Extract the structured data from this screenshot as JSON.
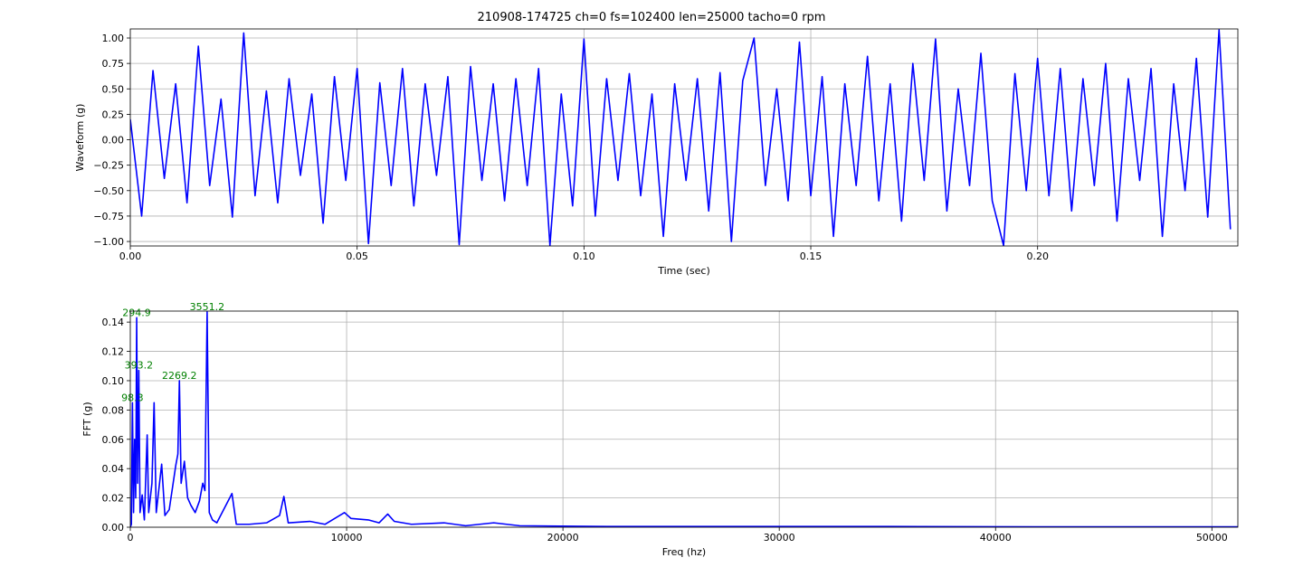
{
  "chart_data": [
    {
      "type": "line",
      "title": "210908-174725 ch=0 fs=102400 len=25000 tacho=0 rpm",
      "xlabel": "Time (sec)",
      "ylabel": "Waveform (g)",
      "x": [
        0,
        0.0025,
        0.005,
        0.0075,
        0.01,
        0.0125,
        0.015,
        0.0175,
        0.02,
        0.0225,
        0.025,
        0.0275,
        0.03,
        0.0325,
        0.035,
        0.0375,
        0.04,
        0.0425,
        0.045,
        0.0475,
        0.05,
        0.0525,
        0.055,
        0.0575,
        0.06,
        0.0625,
        0.065,
        0.0675,
        0.07,
        0.0725,
        0.075,
        0.0775,
        0.08,
        0.0825,
        0.085,
        0.0875,
        0.09,
        0.0925,
        0.095,
        0.0975,
        0.1,
        0.1025,
        0.105,
        0.1075,
        0.11,
        0.1125,
        0.115,
        0.1175,
        0.12,
        0.1225,
        0.125,
        0.1275,
        0.13,
        0.1325,
        0.135,
        0.1375,
        0.14,
        0.1425,
        0.145,
        0.1475,
        0.15,
        0.1525,
        0.155,
        0.1575,
        0.16,
        0.1625,
        0.165,
        0.1675,
        0.17,
        0.1725,
        0.175,
        0.1775,
        0.18,
        0.1825,
        0.185,
        0.1875,
        0.19,
        0.1925,
        0.195,
        0.1975,
        0.2,
        0.2025,
        0.205,
        0.2075,
        0.21,
        0.2125,
        0.215,
        0.2175,
        0.22,
        0.2225,
        0.225,
        0.2275,
        0.23,
        0.2325,
        0.235,
        0.2375,
        0.24,
        0.2425
      ],
      "series": [
        {
          "color": "#0000ff",
          "values": [
            0.2,
            -0.75,
            0.68,
            -0.38,
            0.55,
            -0.62,
            0.92,
            -0.45,
            0.4,
            -0.76,
            1.05,
            -0.55,
            0.48,
            -0.62,
            0.6,
            -0.35,
            0.45,
            -0.82,
            0.62,
            -0.4,
            0.7,
            -1.02,
            0.56,
            -0.45,
            0.7,
            -0.65,
            0.55,
            -0.35,
            0.62,
            -1.03,
            0.72,
            -0.4,
            0.55,
            -0.6,
            0.6,
            -0.45,
            0.7,
            -1.04,
            0.45,
            -0.65,
            0.99,
            -0.75,
            0.6,
            -0.4,
            0.65,
            -0.55,
            0.45,
            -0.95,
            0.55,
            -0.4,
            0.6,
            -0.7,
            0.66,
            -1.0,
            0.58,
            1.0,
            -0.45,
            0.5,
            -0.6,
            0.96,
            -0.55,
            0.62,
            -0.95,
            0.55,
            -0.45,
            0.82,
            -0.6,
            0.55,
            -0.8,
            0.75,
            -0.4,
            0.99,
            -0.7,
            0.5,
            -0.45,
            0.85,
            -0.6,
            -1.04,
            0.65,
            -0.5,
            0.8,
            -0.55,
            0.7,
            -0.7,
            0.6,
            -0.45,
            0.75,
            -0.8,
            0.6,
            -0.4,
            0.7,
            -0.95,
            0.55,
            -0.5,
            0.8,
            -0.76,
            1.08,
            -0.88
          ]
        }
      ],
      "xlim": [
        0,
        0.24414
      ],
      "ylim": [
        -1.044,
        1.089
      ],
      "xticks": [
        {
          "value": 0,
          "label": "0.00"
        },
        {
          "value": 0.05,
          "label": "0.05"
        },
        {
          "value": 0.1,
          "label": "0.10"
        },
        {
          "value": 0.15,
          "label": "0.15"
        },
        {
          "value": 0.2,
          "label": "0.20"
        }
      ],
      "yticks": [
        {
          "value": -1,
          "label": "−1.00"
        },
        {
          "value": -0.75,
          "label": "−0.75"
        },
        {
          "value": -0.5,
          "label": "−0.50"
        },
        {
          "value": -0.25,
          "label": "−0.25"
        },
        {
          "value": 0,
          "label": "0.00"
        },
        {
          "value": 0.25,
          "label": "0.25"
        },
        {
          "value": 0.5,
          "label": "0.50"
        },
        {
          "value": 0.75,
          "label": "0.75"
        },
        {
          "value": 1,
          "label": "1.00"
        }
      ],
      "grid": true
    },
    {
      "type": "line",
      "xlabel": "Freq (hz)",
      "ylabel": "FFT (g)",
      "x": [
        0,
        50,
        98.3,
        150,
        200,
        250,
        294.9,
        340,
        393.2,
        450,
        550,
        650,
        780,
        850,
        1000,
        1100,
        1200,
        1450,
        1600,
        1800,
        2100,
        2200,
        2269.2,
        2350,
        2500,
        2650,
        2800,
        3000,
        3200,
        3350,
        3450,
        3551.2,
        3650,
        3800,
        4000,
        4700,
        4900,
        5500,
        6300,
        6900,
        7100,
        7300,
        8300,
        9000,
        9900,
        10200,
        11000,
        11500,
        11900,
        12200,
        13000,
        14500,
        15500,
        16800,
        18000,
        22000,
        27000,
        30000,
        35000,
        42000,
        51200
      ],
      "series": [
        {
          "color": "#0000ff",
          "values": [
            0.0,
            0.002,
            0.085,
            0.01,
            0.06,
            0.02,
            0.143,
            0.03,
            0.107,
            0.01,
            0.022,
            0.005,
            0.063,
            0.01,
            0.03,
            0.085,
            0.01,
            0.043,
            0.008,
            0.012,
            0.042,
            0.05,
            0.1,
            0.03,
            0.045,
            0.02,
            0.015,
            0.01,
            0.018,
            0.03,
            0.025,
            0.147,
            0.01,
            0.005,
            0.003,
            0.023,
            0.002,
            0.002,
            0.003,
            0.008,
            0.021,
            0.003,
            0.004,
            0.002,
            0.01,
            0.006,
            0.005,
            0.003,
            0.009,
            0.004,
            0.002,
            0.003,
            0.001,
            0.003,
            0.001,
            0.0005,
            0.0005,
            0.0005,
            0.0005,
            0.0003,
            0.0003
          ]
        }
      ],
      "annotations": [
        {
          "label": "294.9",
          "x": 294.9,
          "y": 0.143
        },
        {
          "label": "3551.2",
          "x": 3551.2,
          "y": 0.147
        },
        {
          "label": "393.2",
          "x": 393.2,
          "y": 0.107
        },
        {
          "label": "2269.2",
          "x": 2269.2,
          "y": 0.1
        },
        {
          "label": "98.3",
          "x": 98.3,
          "y": 0.085
        }
      ],
      "annotation_color": "#008000",
      "xlim": [
        0,
        51200
      ],
      "ylim": [
        0,
        0.1475
      ],
      "xticks": [
        0,
        10000,
        20000,
        30000,
        40000,
        50000
      ],
      "yticks": [
        {
          "value": 0,
          "label": "0.00"
        },
        {
          "value": 0.02,
          "label": "0.02"
        },
        {
          "value": 0.04,
          "label": "0.04"
        },
        {
          "value": 0.06,
          "label": "0.06"
        },
        {
          "value": 0.08,
          "label": "0.08"
        },
        {
          "value": 0.1,
          "label": "0.10"
        },
        {
          "value": 0.12,
          "label": "0.12"
        },
        {
          "value": 0.14,
          "label": "0.14"
        }
      ],
      "grid": true
    }
  ]
}
